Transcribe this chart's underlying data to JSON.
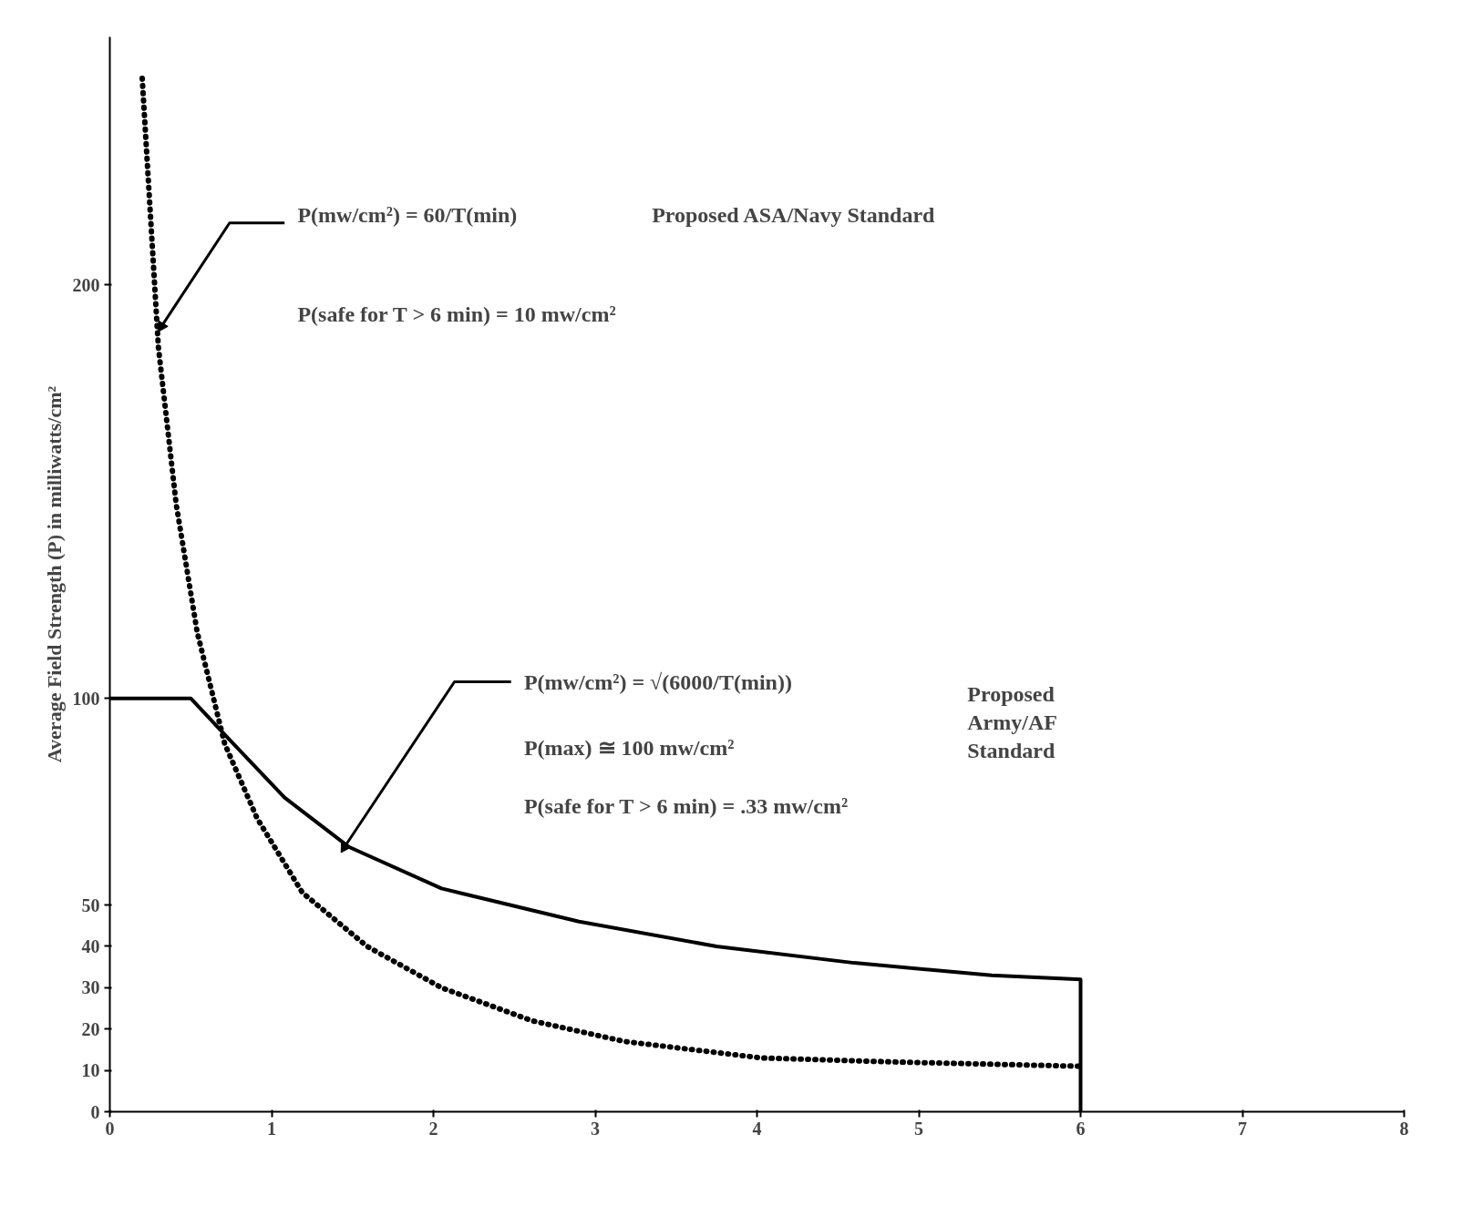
{
  "chart_data": {
    "type": "line",
    "ylabel": "Average Field Strength (P) in milliwatts/cm²",
    "xlim": [
      0,
      8
    ],
    "ylim": [
      0,
      260
    ],
    "xticks": [
      0,
      1,
      2,
      3,
      4,
      5,
      6,
      7,
      8
    ],
    "yticks": [
      0,
      10,
      20,
      30,
      40,
      50,
      100,
      200
    ],
    "grid": false,
    "series": [
      {
        "color": "#000000",
        "line_style": "dotted",
        "x": [
          0.2,
          0.3,
          0.41,
          0.54,
          0.71,
          0.91,
          1.19,
          1.59,
          2.05,
          2.61,
          3.18,
          4.03,
          4.89,
          6
        ],
        "values": [
          250,
          185,
          147,
          116,
          89,
          71,
          53,
          40,
          30,
          22,
          17,
          13,
          12,
          11
        ]
      },
      {
        "color": "#000000",
        "line_style": "solid",
        "x": [
          0,
          0.5,
          0.74,
          1.08,
          1.48,
          2.05,
          2.9,
          3.75,
          4.6,
          5.45,
          6,
          6
        ],
        "values": [
          100,
          100,
          90,
          76,
          64,
          54,
          46,
          40,
          36,
          33,
          32,
          0
        ]
      }
    ],
    "annotations": [
      {
        "text": "P(mw/cm²) = 60/T(min)",
        "x": 0.32,
        "y": 190
      },
      "P(safe for T > 6 min) = 10 mw/cm²",
      "Proposed ASA/Navy Standard",
      {
        "text": "P(mw/cm²) = √(6000/T(min))",
        "x": 1.45,
        "y": 64
      },
      "P(max) ≅ 100 mw/cm²",
      "P(safe for T > 6 min) = .33 mw/cm²",
      "Proposed Army/AF Standard"
    ]
  }
}
